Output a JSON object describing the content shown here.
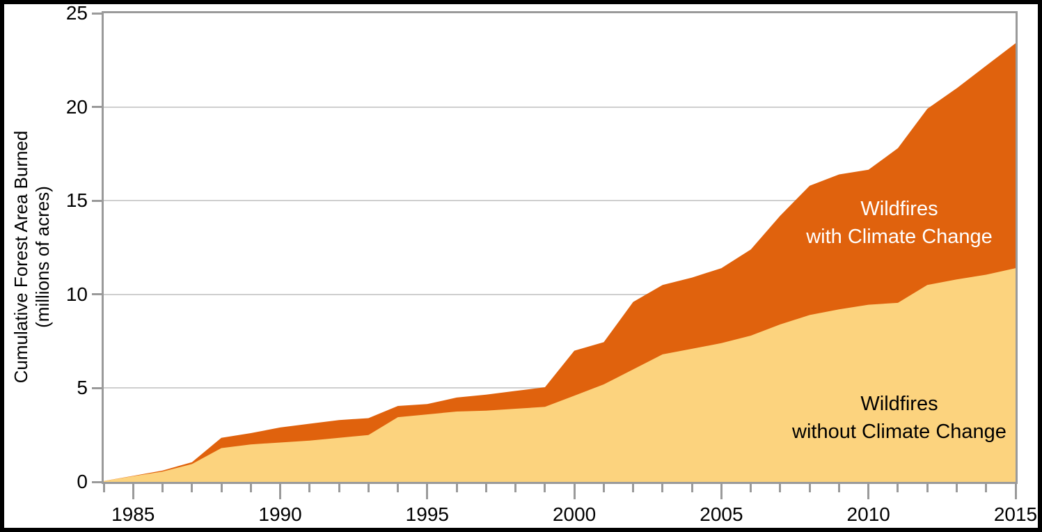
{
  "chart_data": {
    "type": "area",
    "variant": "overlapping-cumulative-areas",
    "title": "",
    "ylabel_line1": "Cumulative Forest Area Burned",
    "ylabel_line2": "(millions of acres)",
    "xlabel": "",
    "xlim": [
      1984,
      2015
    ],
    "ylim": [
      0,
      25
    ],
    "x_major_ticks": [
      "1985",
      "1990",
      "1995",
      "2000",
      "2005",
      "2010",
      "2015"
    ],
    "x_major_tick_values": [
      1985,
      1990,
      1995,
      2000,
      2005,
      2010,
      2015
    ],
    "x_minor_tick_step": 1,
    "y_ticks": [
      "0",
      "5",
      "10",
      "15",
      "20",
      "25"
    ],
    "y_tick_values": [
      0,
      5,
      10,
      15,
      20,
      25
    ],
    "grid": "horizontal",
    "x": [
      1984,
      1985,
      1986,
      1987,
      1988,
      1989,
      1990,
      1991,
      1992,
      1993,
      1994,
      1995,
      1996,
      1997,
      1998,
      1999,
      2000,
      2001,
      2002,
      2003,
      2004,
      2005,
      2006,
      2007,
      2008,
      2009,
      2010,
      2011,
      2012,
      2013,
      2014,
      2015
    ],
    "series": [
      {
        "name": "Wildfires with Climate Change",
        "role": "total-cumulative-area-burned-with-climate-change",
        "color": "#E0620D",
        "values": [
          0.05,
          0.32,
          0.6,
          1.05,
          2.35,
          2.6,
          2.9,
          3.1,
          3.3,
          3.4,
          4.05,
          4.15,
          4.5,
          4.65,
          4.85,
          5.05,
          7.0,
          7.45,
          9.6,
          10.5,
          10.9,
          11.4,
          12.4,
          14.2,
          15.8,
          16.4,
          16.65,
          17.8,
          19.9,
          21.0,
          22.2,
          23.4
        ]
      },
      {
        "name": "Wildfires without Climate Change",
        "role": "cumulative-area-burned-without-climate-change",
        "color": "#FCD37E",
        "values": [
          0.05,
          0.3,
          0.55,
          0.95,
          1.8,
          2.0,
          2.1,
          2.2,
          2.35,
          2.5,
          3.45,
          3.6,
          3.75,
          3.8,
          3.9,
          4.0,
          4.6,
          5.2,
          6.0,
          6.8,
          7.1,
          7.4,
          7.8,
          8.4,
          8.9,
          9.2,
          9.45,
          9.55,
          10.5,
          10.8,
          11.05,
          11.4
        ]
      }
    ],
    "annotations": [
      {
        "line1": "Wildfires",
        "line2": "with Climate Change",
        "text_color": "#FFFFFF",
        "on_series": "Wildfires with Climate Change"
      },
      {
        "line1": "Wildfires",
        "line2": "without Climate Change",
        "text_color": "#000000",
        "on_series": "Wildfires without Climate Change"
      }
    ],
    "colors": {
      "axis": "#9A9A9A",
      "gridline": "#CFCFCF",
      "frame_border": "#000000",
      "background": "#FFFFFF"
    }
  }
}
